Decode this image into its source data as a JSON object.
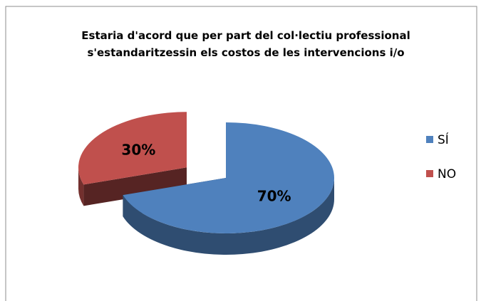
{
  "chart_data": {
    "type": "pie",
    "title": "Estaria d'acord que per part del col·lectiu professional s'estandaritzessin els costos de les intervencions i/o",
    "categories": [
      "SÍ",
      "NO"
    ],
    "values": [
      70,
      30
    ],
    "value_labels": [
      "70%",
      "30%"
    ],
    "colors": [
      "#4f81bd",
      "#c0504d"
    ],
    "legend": "right"
  }
}
